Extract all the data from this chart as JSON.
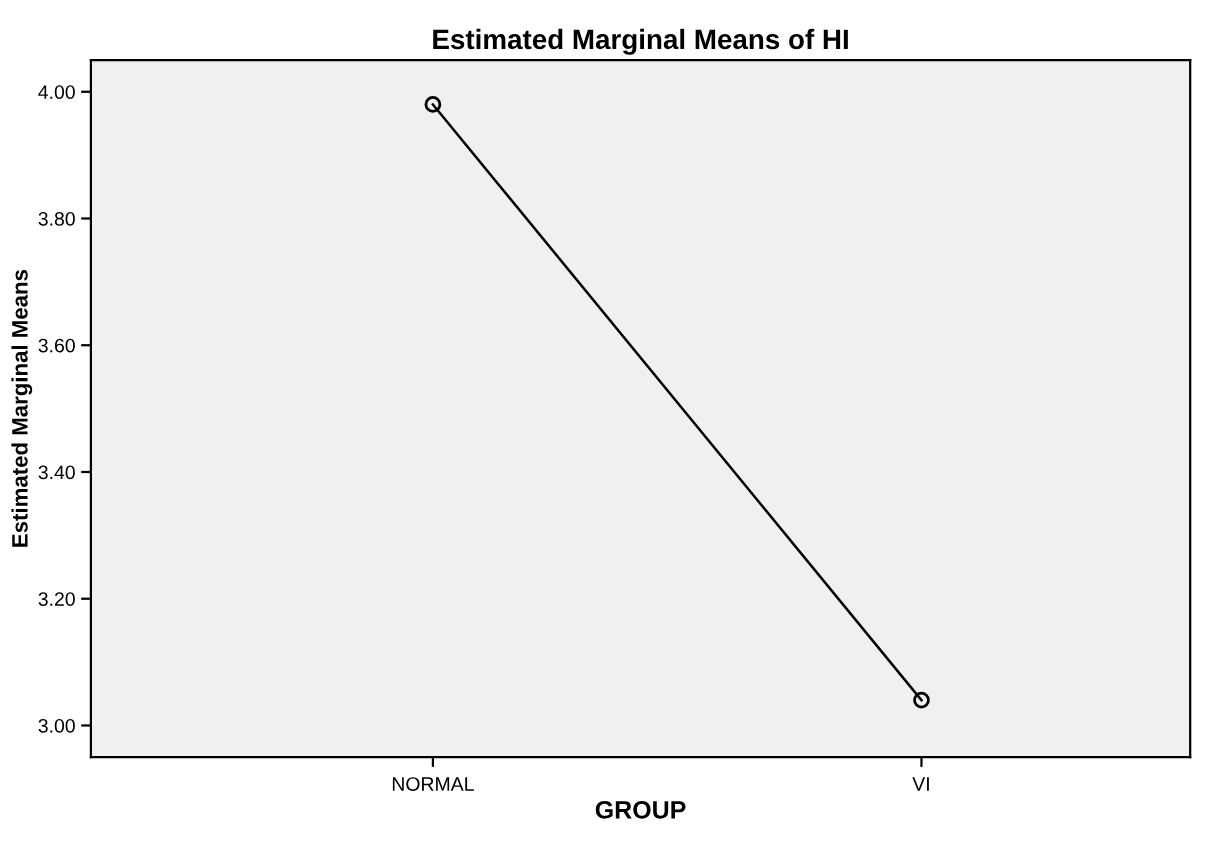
{
  "chart_data": {
    "type": "line",
    "title": "Estimated Marginal Means of HI",
    "xlabel": "GROUP",
    "ylabel": "Estimated Marginal Means",
    "categories": [
      "NORMAL",
      "VI"
    ],
    "series": [
      {
        "color": "#000000",
        "values": [
          3.98,
          3.04
        ]
      }
    ],
    "marker": "circle",
    "line_style": "solid",
    "grid": false,
    "legend": false,
    "ylim": [
      2.95,
      4.05
    ],
    "yticks": [
      {
        "value": 3.0,
        "label": "3.00"
      },
      {
        "value": 3.2,
        "label": "3.20"
      },
      {
        "value": 3.4,
        "label": "3.40"
      },
      {
        "value": 3.6,
        "label": "3.60"
      },
      {
        "value": 3.8,
        "label": "3.80"
      },
      {
        "value": 4.0,
        "label": "4.00"
      }
    ]
  }
}
